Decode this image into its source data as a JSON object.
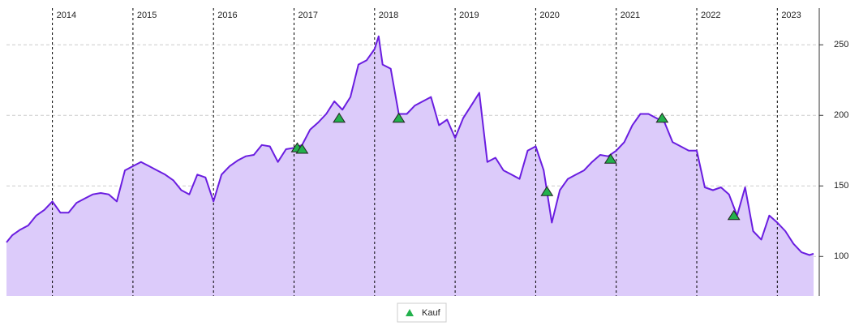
{
  "chart_data": {
    "type": "area",
    "color": "#6a1de0",
    "fill": "#dccbfa",
    "xlim": [
      2013.43,
      2023.45
    ],
    "xticks": [
      2014,
      2015,
      2016,
      2017,
      2018,
      2019,
      2020,
      2021,
      2022,
      2023
    ],
    "ylim": [
      72,
      276
    ],
    "yticks": [
      100,
      150,
      200,
      250
    ],
    "grid": true,
    "x": [
      2013.43,
      2013.5,
      2013.6,
      2013.7,
      2013.8,
      2013.9,
      2014.0,
      2014.1,
      2014.2,
      2014.3,
      2014.4,
      2014.5,
      2014.6,
      2014.7,
      2014.8,
      2014.9,
      2015.0,
      2015.1,
      2015.2,
      2015.3,
      2015.4,
      2015.5,
      2015.6,
      2015.7,
      2015.8,
      2015.9,
      2016.0,
      2016.1,
      2016.2,
      2016.3,
      2016.4,
      2016.5,
      2016.6,
      2016.7,
      2016.8,
      2016.9,
      2017.0,
      2017.1,
      2017.2,
      2017.3,
      2017.4,
      2017.5,
      2017.6,
      2017.7,
      2017.8,
      2017.9,
      2018.0,
      2018.05,
      2018.1,
      2018.2,
      2018.3,
      2018.4,
      2018.5,
      2018.6,
      2018.7,
      2018.8,
      2018.9,
      2019.0,
      2019.1,
      2019.2,
      2019.3,
      2019.4,
      2019.5,
      2019.6,
      2019.7,
      2019.8,
      2019.9,
      2020.0,
      2020.1,
      2020.2,
      2020.3,
      2020.4,
      2020.5,
      2020.6,
      2020.7,
      2020.8,
      2020.9,
      2021.0,
      2021.1,
      2021.2,
      2021.3,
      2021.4,
      2021.5,
      2021.6,
      2021.7,
      2021.8,
      2021.9,
      2022.0,
      2022.1,
      2022.2,
      2022.3,
      2022.4,
      2022.5,
      2022.6,
      2022.7,
      2022.8,
      2022.9,
      2023.0,
      2023.1,
      2023.2,
      2023.3,
      2023.4,
      2023.45
    ],
    "values": [
      110,
      115,
      119,
      122,
      129,
      133,
      139,
      131,
      131,
      138,
      141,
      144,
      145,
      144,
      139,
      161,
      164,
      167,
      164,
      161,
      158,
      154,
      147,
      144,
      158,
      156,
      139,
      158,
      164,
      168,
      171,
      172,
      179,
      178,
      167,
      176,
      177,
      179,
      190,
      195,
      201,
      210,
      204,
      213,
      236,
      239,
      247,
      256,
      236,
      233,
      201,
      201,
      207,
      210,
      213,
      193,
      197,
      184,
      198,
      207,
      216,
      167,
      170,
      161,
      158,
      155,
      175,
      178,
      161,
      124,
      147,
      155,
      158,
      161,
      167,
      172,
      171,
      175,
      181,
      193,
      201,
      201,
      198,
      195,
      181,
      178,
      175,
      175,
      149,
      147,
      149,
      144,
      129,
      149,
      118,
      112,
      129,
      124,
      118,
      109,
      103,
      101,
      102
    ],
    "markers": {
      "name": "Kauf",
      "color": "#22b14c",
      "x": [
        2017.04,
        2017.1,
        2017.56,
        2018.3,
        2020.14,
        2020.93,
        2021.57,
        2022.46
      ],
      "values": [
        177,
        176,
        198,
        198,
        146,
        169,
        198,
        129
      ]
    }
  }
}
